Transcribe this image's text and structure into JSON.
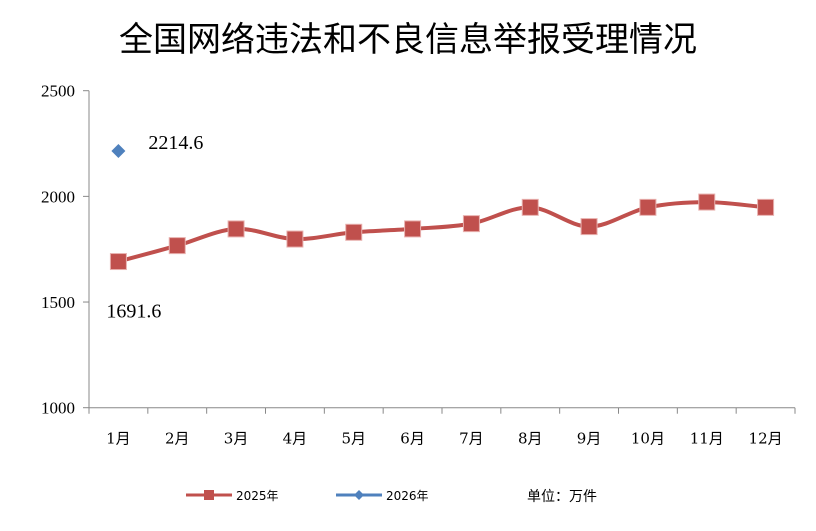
{
  "chart_data": {
    "type": "line",
    "title": "全国网络违法和不良信息举报受理情况",
    "categories": [
      "1月",
      "2月",
      "3月",
      "4月",
      "5月",
      "6月",
      "7月",
      "8月",
      "9月",
      "10月",
      "11月",
      "12月"
    ],
    "yticks": [
      "1000",
      "1500",
      "2000",
      "2500"
    ],
    "ylim": [
      1000,
      2500
    ],
    "grid": false,
    "legend_position": "bottom",
    "unit_label": "单位：万件",
    "series": [
      {
        "name": "2025年",
        "color": "#C0504D",
        "marker": "square",
        "smooth": true,
        "values": [
          1691.6,
          1767,
          1846,
          1798,
          1830,
          1846,
          1871,
          1948,
          1857,
          1948,
          1973,
          1948
        ]
      },
      {
        "name": "2026年",
        "color": "#4F81BD",
        "marker": "diamond",
        "values": [
          2214.6,
          null,
          null,
          null,
          null,
          null,
          null,
          null,
          null,
          null,
          null,
          null
        ]
      }
    ],
    "annotations": [
      {
        "series": "2025年",
        "category": "1月",
        "text": "1691.6"
      },
      {
        "series": "2026年",
        "category": "1月",
        "text": "2214.6"
      }
    ]
  }
}
